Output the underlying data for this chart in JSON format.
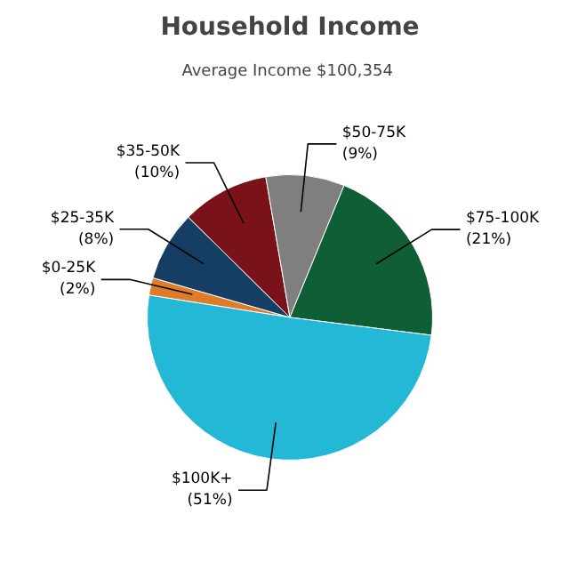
{
  "chart_data": {
    "type": "pie",
    "title": "Household Income",
    "subtitle": "Average Income  $100,354",
    "categories": [
      "$0-25K",
      "$25-35K",
      "$35-50K",
      "$50-75K",
      "$75-100K",
      "$100K+"
    ],
    "values": [
      2,
      8,
      10,
      9,
      21,
      51
    ],
    "value_labels": [
      "(2%)",
      "(8%)",
      "(10%)",
      "(9%)",
      "(21%)",
      "(51%)"
    ],
    "colors": [
      "#e07b2a",
      "#143e64",
      "#7a1319",
      "#7f7f7f",
      "#0f5e35",
      "#22b8d6"
    ]
  }
}
